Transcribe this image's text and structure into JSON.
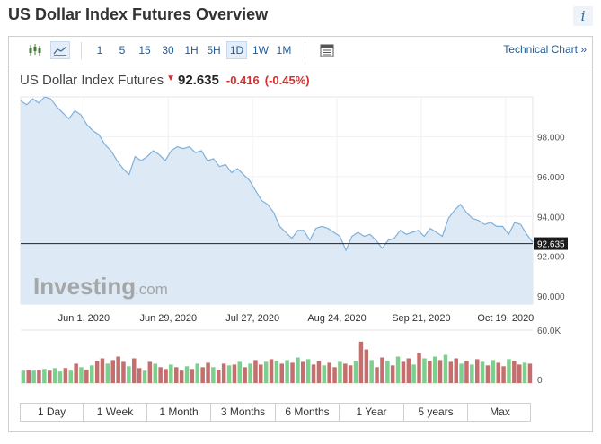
{
  "header": {
    "title": "US Dollar Index Futures Overview",
    "info_icon": "i"
  },
  "toolbar": {
    "icons": [
      "candlestick-icon",
      "area-chart-icon",
      "table-icon"
    ],
    "timeframes": [
      "1",
      "5",
      "15",
      "30",
      "1H",
      "5H",
      "1D",
      "1W",
      "1M"
    ],
    "active_timeframe": "1D",
    "technical_chart_link": "Technical Chart »"
  },
  "quote": {
    "name": "US Dollar Index Futures",
    "direction_icon": "down-arrow-icon",
    "price": "92.635",
    "change": "-0.416",
    "change_pct": "(-0.45%)",
    "change_color": "#d32f2f"
  },
  "watermark": {
    "brand": "Investing",
    "domain": ".com"
  },
  "colors": {
    "line": "#7fb0dc",
    "fill": "#dde9f4",
    "vol_up": "#7ccf8d",
    "vol_down": "#c56e6e",
    "last_price_bg": "#1a1a1a"
  },
  "chart_data": {
    "type": "area",
    "y_ticks": [
      "98.000",
      "96.000",
      "94.000",
      "92.000",
      "90.000"
    ],
    "y_tick_values": [
      98,
      96,
      94,
      92,
      90
    ],
    "ylim": [
      89.6,
      100.0
    ],
    "last_price_label": "92.635",
    "last_price": 92.635,
    "x_ticks": [
      "Jun 1, 2020",
      "Jun 29, 2020",
      "Jul 27, 2020",
      "Aug 24, 2020",
      "Sep 21, 2020",
      "Oct 19, 2020"
    ],
    "x_tick_days": [
      21,
      49,
      77,
      105,
      133,
      161
    ],
    "xlim": [
      0,
      170
    ],
    "series": [
      {
        "values": [
          [
            0,
            99.8
          ],
          [
            2,
            99.6
          ],
          [
            4,
            99.9
          ],
          [
            6,
            99.7
          ],
          [
            8,
            100.0
          ],
          [
            10,
            99.9
          ],
          [
            12,
            99.5
          ],
          [
            14,
            99.2
          ],
          [
            16,
            98.9
          ],
          [
            18,
            99.3
          ],
          [
            20,
            99.1
          ],
          [
            22,
            98.6
          ],
          [
            24,
            98.3
          ],
          [
            26,
            98.1
          ],
          [
            28,
            97.6
          ],
          [
            30,
            97.3
          ],
          [
            32,
            96.8
          ],
          [
            34,
            96.4
          ],
          [
            36,
            96.1
          ],
          [
            38,
            97.0
          ],
          [
            40,
            96.8
          ],
          [
            42,
            97.0
          ],
          [
            44,
            97.3
          ],
          [
            46,
            97.1
          ],
          [
            48,
            96.8
          ],
          [
            50,
            97.3
          ],
          [
            52,
            97.5
          ],
          [
            54,
            97.4
          ],
          [
            56,
            97.5
          ],
          [
            58,
            97.2
          ],
          [
            60,
            97.3
          ],
          [
            62,
            96.8
          ],
          [
            64,
            96.9
          ],
          [
            66,
            96.5
          ],
          [
            68,
            96.6
          ],
          [
            70,
            96.2
          ],
          [
            72,
            96.4
          ],
          [
            74,
            96.1
          ],
          [
            76,
            95.8
          ],
          [
            78,
            95.3
          ],
          [
            80,
            94.8
          ],
          [
            82,
            94.6
          ],
          [
            84,
            94.2
          ],
          [
            86,
            93.5
          ],
          [
            88,
            93.2
          ],
          [
            90,
            92.9
          ],
          [
            92,
            93.3
          ],
          [
            94,
            93.3
          ],
          [
            96,
            92.8
          ],
          [
            98,
            93.4
          ],
          [
            100,
            93.5
          ],
          [
            102,
            93.4
          ],
          [
            104,
            93.2
          ],
          [
            106,
            93.0
          ],
          [
            108,
            92.3
          ],
          [
            110,
            93.0
          ],
          [
            112,
            93.2
          ],
          [
            114,
            93.0
          ],
          [
            116,
            93.1
          ],
          [
            118,
            92.8
          ],
          [
            120,
            92.4
          ],
          [
            122,
            92.8
          ],
          [
            124,
            92.9
          ],
          [
            126,
            93.3
          ],
          [
            128,
            93.1
          ],
          [
            130,
            93.2
          ],
          [
            132,
            93.3
          ],
          [
            134,
            93.0
          ],
          [
            136,
            93.4
          ],
          [
            138,
            93.2
          ],
          [
            140,
            93.0
          ],
          [
            142,
            93.9
          ],
          [
            144,
            94.3
          ],
          [
            146,
            94.6
          ],
          [
            148,
            94.2
          ],
          [
            150,
            93.9
          ],
          [
            152,
            93.8
          ],
          [
            154,
            93.6
          ],
          [
            156,
            93.7
          ],
          [
            158,
            93.5
          ],
          [
            160,
            93.5
          ],
          [
            162,
            93.1
          ],
          [
            164,
            93.7
          ],
          [
            166,
            93.6
          ],
          [
            168,
            93.1
          ],
          [
            170,
            92.7
          ]
        ]
      }
    ],
    "volume": {
      "ylim": [
        0,
        60000
      ],
      "y_ticks": [
        "60.0K",
        "0"
      ],
      "bars": [
        [
          0,
          14,
          1
        ],
        [
          1,
          15,
          0
        ],
        [
          2,
          14,
          1
        ],
        [
          3,
          15,
          0
        ],
        [
          4,
          16,
          1
        ],
        [
          5,
          14,
          0
        ],
        [
          6,
          17,
          1
        ],
        [
          7,
          13,
          1
        ],
        [
          8,
          17,
          0
        ],
        [
          9,
          14,
          1
        ],
        [
          10,
          22,
          0
        ],
        [
          11,
          18,
          1
        ],
        [
          12,
          15,
          0
        ],
        [
          13,
          20,
          1
        ],
        [
          14,
          25,
          0
        ],
        [
          15,
          28,
          0
        ],
        [
          16,
          22,
          1
        ],
        [
          17,
          26,
          0
        ],
        [
          18,
          30,
          0
        ],
        [
          19,
          24,
          0
        ],
        [
          20,
          19,
          1
        ],
        [
          21,
          28,
          0
        ],
        [
          22,
          17,
          0
        ],
        [
          23,
          14,
          1
        ],
        [
          24,
          24,
          0
        ],
        [
          25,
          22,
          1
        ],
        [
          26,
          18,
          0
        ],
        [
          27,
          16,
          0
        ],
        [
          28,
          21,
          1
        ],
        [
          29,
          18,
          0
        ],
        [
          30,
          14,
          0
        ],
        [
          31,
          19,
          1
        ],
        [
          32,
          16,
          0
        ],
        [
          33,
          22,
          1
        ],
        [
          34,
          18,
          0
        ],
        [
          35,
          23,
          0
        ],
        [
          36,
          18,
          1
        ],
        [
          37,
          15,
          0
        ],
        [
          38,
          22,
          0
        ],
        [
          39,
          20,
          1
        ],
        [
          40,
          21,
          0
        ],
        [
          41,
          24,
          1
        ],
        [
          42,
          18,
          0
        ],
        [
          43,
          22,
          1
        ],
        [
          44,
          26,
          0
        ],
        [
          45,
          21,
          0
        ],
        [
          46,
          24,
          1
        ],
        [
          47,
          27,
          0
        ],
        [
          48,
          25,
          1
        ],
        [
          49,
          22,
          0
        ],
        [
          50,
          26,
          1
        ],
        [
          51,
          23,
          0
        ],
        [
          52,
          29,
          1
        ],
        [
          53,
          24,
          0
        ],
        [
          54,
          27,
          1
        ],
        [
          55,
          21,
          0
        ],
        [
          56,
          25,
          0
        ],
        [
          57,
          20,
          1
        ],
        [
          58,
          23,
          0
        ],
        [
          59,
          18,
          0
        ],
        [
          60,
          24,
          1
        ],
        [
          61,
          22,
          0
        ],
        [
          62,
          20,
          0
        ],
        [
          63,
          25,
          1
        ],
        [
          64,
          47,
          0
        ],
        [
          65,
          38,
          0
        ],
        [
          66,
          26,
          1
        ],
        [
          67,
          18,
          0
        ],
        [
          68,
          29,
          0
        ],
        [
          69,
          25,
          1
        ],
        [
          70,
          20,
          0
        ],
        [
          71,
          30,
          1
        ],
        [
          72,
          24,
          0
        ],
        [
          73,
          28,
          0
        ],
        [
          74,
          21,
          1
        ],
        [
          75,
          34,
          0
        ],
        [
          76,
          28,
          1
        ],
        [
          77,
          25,
          0
        ],
        [
          78,
          30,
          1
        ],
        [
          79,
          26,
          0
        ],
        [
          80,
          32,
          1
        ],
        [
          81,
          24,
          0
        ],
        [
          82,
          28,
          0
        ],
        [
          83,
          22,
          1
        ],
        [
          84,
          25,
          0
        ],
        [
          85,
          21,
          1
        ],
        [
          86,
          27,
          0
        ],
        [
          87,
          24,
          1
        ],
        [
          88,
          20,
          0
        ],
        [
          89,
          26,
          1
        ],
        [
          90,
          23,
          0
        ],
        [
          91,
          19,
          0
        ],
        [
          92,
          27,
          1
        ],
        [
          93,
          25,
          0
        ],
        [
          94,
          21,
          0
        ],
        [
          95,
          23,
          1
        ],
        [
          96,
          22,
          0
        ]
      ]
    },
    "ranges": [
      "1 Day",
      "1 Week",
      "1 Month",
      "3 Months",
      "6 Months",
      "1 Year",
      "5 years",
      "Max"
    ]
  }
}
